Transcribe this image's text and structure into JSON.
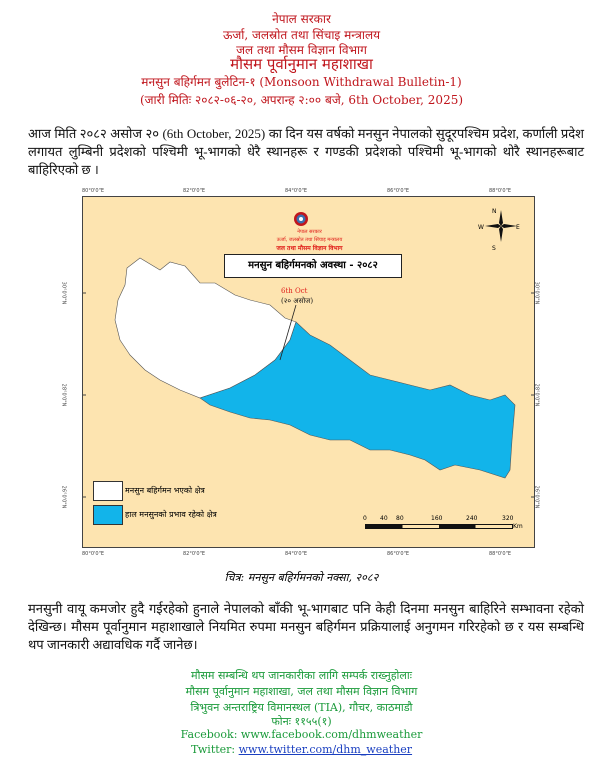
{
  "header": {
    "line1": "नेपाल सरकार",
    "line2": "ऊर्जा, जलस्रोत तथा सिंचाइ मन्त्रालय",
    "line3": "जल तथा मौसम विज्ञान विभाग",
    "line4": "मौसम पूर्वानुमान महाशाखा",
    "bulletin": "मनसुन बहिर्गमन बुलेटिन-१  (Monsoon Withdrawal Bulletin-1)",
    "issued": "(जारी मितिः २०८२-०६-२०, अपरान्ह २:०० बजे, 6th October, 2025)"
  },
  "intro": "आज मिति २०८२ असोज २० (6th October, 2025) का दिन यस वर्षको मनसुन नेपालको सुदूरपश्चिम प्रदेश, कर्णाली प्रदेश लगायत लुम्बिनी प्रदेशको पश्चिमी भू-भागको धेरै स्थानहरू र गण्डकी प्रदेशको पश्चिमी भू-भागको थोरै स्थानहरूबाट बाहिरिएको छ ।",
  "map": {
    "logo_text": [
      "नेपाल सरकार",
      "ऊर्जा, जलस्रोत तथा सिंचाइ मन्त्रालय",
      "जल तथा मौसम विज्ञान विभाग"
    ],
    "title": "मनसुन बहिर्गमनको अवस्था - २०८२",
    "annotation_date": "6th Oct",
    "annotation_nepali": "(२० असोज)",
    "lon_ticks": [
      "80°0'0\"E",
      "82°0'0\"E",
      "84°0'0\"E",
      "86°0'0\"E",
      "88°0'0\"E"
    ],
    "lat_ticks": [
      "30°0'0\"N",
      "28°0'0\"N",
      "26°0'0\"N"
    ],
    "compass": {
      "n": "N",
      "s": "S",
      "e": "E",
      "w": "W"
    },
    "legend": [
      {
        "label": "मनसुन बहिर्गमन भएको क्षेत्र",
        "color": "#ffffff"
      },
      {
        "label": "हाल मनसुनको प्रभाव रहेको क्षेत्र",
        "color": "#12b4ea"
      }
    ],
    "scale": {
      "labels": [
        "0",
        "40",
        "80",
        "160",
        "240",
        "320"
      ],
      "unit": "Km"
    },
    "colors": {
      "background": "#fde4b0",
      "withdrawn": "#ffffff",
      "active": "#12b4ea"
    }
  },
  "caption": "चित्र:  मनसुन बहिर्गमनको नक्सा, २०८२",
  "body": "मनसुनी वायू कमजोर हुदै गईरहेको हुनाले नेपालको बाँकी भू-भागबाट पनि केही दिनमा मनसुन बाहिरिने सम्भावना रहेको देखिन्छ। मौसम पूर्वानुमान महाशाखाले नियमित रुपमा मनसुन बहिर्गमन प्रक्रियालाई अनुगमन गरिरहेको छ र यस सम्बन्धि थप जानकारी अद्यावधिक गर्दै जानेछ।",
  "footer": {
    "line1": "मौसम सम्बन्धि थप जानकारीका लागि सम्पर्क राख्नुहोलाः",
    "line2": "मौसम पूर्वानुमान महाशाखा, जल तथा मौसम विज्ञान विभाग",
    "line3": "त्रिभुवन अन्तराष्ट्रिय विमानस्थल (TIA), गौचर, काठमाडौ",
    "phone": "फोनः ११५५(१)",
    "facebook_label": "Facebook:",
    "facebook_url": "www.facebook.com/dhmweather",
    "twitter_label": "Twitter:",
    "twitter_url": "www.twitter.com/dhm_weather"
  }
}
